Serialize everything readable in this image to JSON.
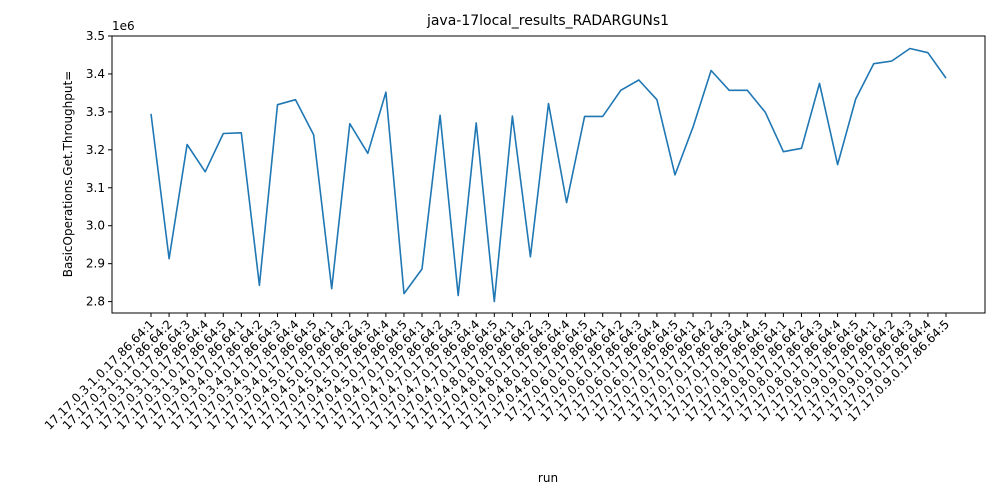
{
  "chart_data": {
    "type": "line",
    "title": "java-17local_results_RADARGUNs1",
    "xlabel": "run",
    "ylabel": "BasicOperations.Get.Throughput=",
    "y_offset_label": "1e6",
    "ylim": [
      2.77,
      3.5
    ],
    "y_ticks": [
      2.8,
      2.9,
      3.0,
      3.1,
      3.2,
      3.3,
      3.4,
      3.5
    ],
    "y_tick_labels": [
      "2.8",
      "2.9",
      "3.0",
      "3.1",
      "3.2",
      "3.3",
      "3.4",
      "3.5"
    ],
    "grid": false,
    "color": "#1f77b4",
    "categories": [
      "17.17.0.3.1.0.17.86.64:1",
      "17.17.0.3.1.0.17.86.64:2",
      "17.17.0.3.1.0.17.86.64:3",
      "17.17.0.3.1.0.17.86.64:4",
      "17.17.0.3.1.0.17.86.64:5",
      "17.17.0.3.4.0.17.86.64:1",
      "17.17.0.3.4.0.17.86.64:2",
      "17.17.0.3.4.0.17.86.64:3",
      "17.17.0.3.4.0.17.86.64:4",
      "17.17.0.3.4.0.17.86.64:5",
      "17.17.0.4.5.0.17.86.64:1",
      "17.17.0.4.5.0.17.86.64:2",
      "17.17.0.4.5.0.17.86.64:3",
      "17.17.0.4.5.0.17.86.64:4",
      "17.17.0.4.5.0.17.86.64:5",
      "17.17.0.4.7.0.17.86.64:1",
      "17.17.0.4.7.0.17.86.64:2",
      "17.17.0.4.7.0.17.86.64:3",
      "17.17.0.4.7.0.17.86.64:4",
      "17.17.0.4.7.0.17.86.64:5",
      "17.17.0.4.8.0.17.86.64:1",
      "17.17.0.4.8.0.17.86.64:2",
      "17.17.0.4.8.0.17.86.64:3",
      "17.17.0.4.8.0.17.86.64:4",
      "17.17.0.4.8.0.17.86.64:5",
      "17.17.0.6.0.17.86.64:1",
      "17.17.0.6.0.17.86.64:2",
      "17.17.0.6.0.17.86.64:3",
      "17.17.0.6.0.17.86.64:4",
      "17.17.0.6.0.17.86.64:5",
      "17.17.0.7.0.17.86.64:1",
      "17.17.0.7.0.17.86.64:2",
      "17.17.0.7.0.17.86.64:3",
      "17.17.0.7.0.17.86.64:4",
      "17.17.0.7.0.17.86.64:5",
      "17.17.0.8.0.17.86.64:1",
      "17.17.0.8.0.17.86.64:2",
      "17.17.0.8.0.17.86.64:3",
      "17.17.0.8.0.17.86.64:4",
      "17.17.0.8.0.17.86.64:5",
      "17.17.0.9.0.17.86.64:1",
      "17.17.0.9.0.17.86.64:2",
      "17.17.0.9.0.17.86.64:3",
      "17.17.0.9.0.17.86.64:4",
      "17.17.0.9.0.17.86.64:5"
    ],
    "values": [
      3.295,
      2.913,
      3.214,
      3.142,
      3.243,
      3.245,
      2.843,
      3.319,
      3.332,
      3.24,
      2.834,
      3.269,
      3.191,
      3.352,
      2.821,
      2.886,
      3.291,
      2.816,
      3.271,
      2.8,
      3.289,
      2.918,
      3.322,
      3.061,
      3.288,
      3.288,
      3.357,
      3.384,
      3.332,
      3.134,
      3.26,
      3.409,
      3.357,
      3.357,
      3.299,
      3.195,
      3.204,
      3.375,
      3.161,
      3.334,
      3.427,
      3.434,
      3.467,
      3.456,
      3.389
    ]
  }
}
